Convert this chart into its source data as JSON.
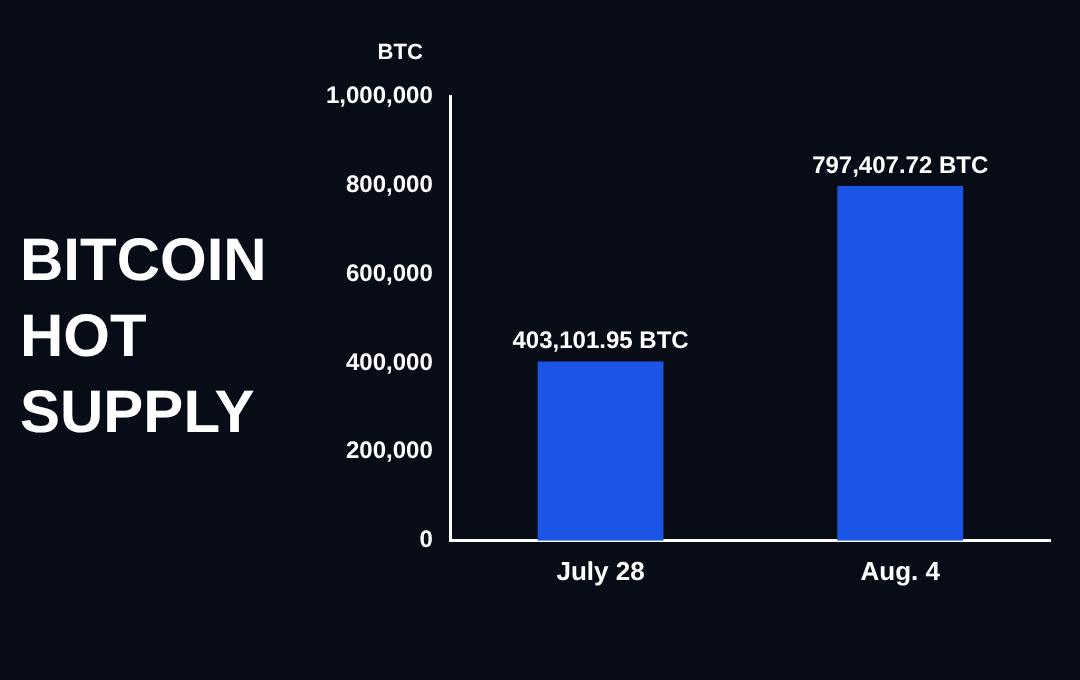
{
  "chart_data": {
    "type": "bar",
    "title": "BITCOIN HOT SUPPLY",
    "ylabel": "BTC",
    "categories": [
      "July 28",
      "Aug. 4"
    ],
    "values": [
      403101.95,
      797407.72
    ],
    "value_labels": [
      "403,101.95 BTC",
      "797,407.72 BTC"
    ],
    "color": "#1a55e6",
    "ylim": [
      0,
      1000000
    ],
    "yticks": [
      0,
      {
        "value": 200000,
        "label": "200,000"
      },
      {
        "value": 400000,
        "label": "400,000"
      },
      {
        "value": 600000,
        "label": "600,000"
      },
      {
        "value": 800000,
        "label": "800,000"
      },
      {
        "value": 1000000,
        "label": "1,000,000"
      }
    ],
    "grid": false,
    "legend": false
  }
}
